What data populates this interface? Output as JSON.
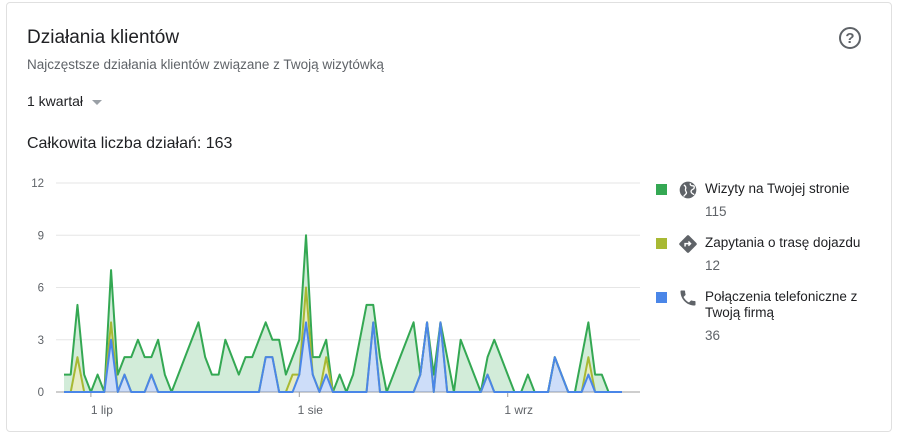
{
  "header": {
    "title": "Działania klientów",
    "subtitle": "Najczęstsze działania klientów związane z Twoją wizytówką",
    "help_icon": "help-circle-icon"
  },
  "period_selector": {
    "label": "1 kwartał"
  },
  "total": {
    "label": "Całkowita liczba działań: 163"
  },
  "legend": [
    {
      "name": "Wizyty na Twojej stronie",
      "value": "115",
      "color": "#34a853",
      "icon": "globe-icon"
    },
    {
      "name": "Zapytania o trasę dojazdu",
      "value": "12",
      "color": "#a8b933",
      "icon": "directions-icon"
    },
    {
      "name": "Połączenia telefoniczne z Twoją firmą",
      "value": "36",
      "color": "#4a86e8",
      "icon": "phone-icon"
    }
  ],
  "chart_data": {
    "type": "area",
    "stacked": true,
    "x_ticks": [
      "1 lip",
      "1 sie",
      "1 wrz"
    ],
    "x_tick_day_index": [
      4,
      35,
      66
    ],
    "y_ticks": [
      0,
      3,
      6,
      9,
      12
    ],
    "ylim": [
      0,
      12
    ],
    "grid": true,
    "legend_position": "right",
    "series": [
      {
        "name": "Połączenia telefoniczne z Twoją firmą",
        "color": "#4a86e8",
        "values": [
          0,
          0,
          0,
          0,
          0,
          0,
          0,
          3,
          0,
          1,
          0,
          0,
          0,
          1,
          0,
          0,
          0,
          0,
          0,
          0,
          0,
          0,
          0,
          0,
          0,
          0,
          0,
          0,
          0,
          0,
          2,
          2,
          0,
          0,
          0,
          1,
          4,
          1,
          0,
          1,
          0,
          0,
          0,
          0,
          0,
          0,
          4,
          0,
          0,
          0,
          0,
          0,
          0,
          1,
          4,
          0,
          4,
          0,
          0,
          0,
          0,
          0,
          0,
          1,
          0,
          0,
          0,
          0,
          0,
          0,
          0,
          0,
          0,
          2,
          1,
          0,
          0,
          0,
          1,
          0,
          0,
          0,
          0,
          0
        ]
      },
      {
        "name": "Zapytania o trasę dojazdu",
        "color": "#a8b933",
        "values": [
          0,
          0,
          2,
          0,
          0,
          0,
          0,
          1,
          0,
          0,
          0,
          0,
          0,
          0,
          0,
          0,
          0,
          0,
          0,
          0,
          0,
          0,
          0,
          0,
          0,
          0,
          0,
          0,
          0,
          0,
          0,
          0,
          0,
          0,
          1,
          0,
          2,
          0,
          0,
          1,
          0,
          0,
          0,
          0,
          0,
          0,
          0,
          0,
          0,
          0,
          0,
          0,
          0,
          0,
          0,
          0,
          0,
          0,
          0,
          0,
          0,
          0,
          0,
          0,
          0,
          0,
          0,
          0,
          0,
          0,
          0,
          0,
          0,
          0,
          0,
          0,
          0,
          0,
          1,
          0,
          0,
          0,
          0,
          0
        ]
      },
      {
        "name": "Wizyty na Twojej stronie",
        "color": "#34a853",
        "values": [
          1,
          1,
          3,
          1,
          0,
          1,
          0,
          3,
          1,
          1,
          2,
          3,
          2,
          1,
          3,
          1,
          0,
          1,
          2,
          3,
          4,
          2,
          1,
          1,
          3,
          2,
          1,
          2,
          2,
          3,
          2,
          1,
          3,
          1,
          1,
          2,
          3,
          1,
          2,
          1,
          0,
          1,
          0,
          1,
          3,
          5,
          1,
          2,
          0,
          1,
          2,
          3,
          4,
          0,
          0,
          1,
          0,
          2,
          0,
          3,
          2,
          1,
          0,
          1,
          3,
          2,
          1,
          0,
          0,
          1,
          0,
          0,
          0,
          0,
          0,
          0,
          0,
          2,
          2,
          1,
          1,
          0,
          0,
          0
        ]
      }
    ]
  }
}
